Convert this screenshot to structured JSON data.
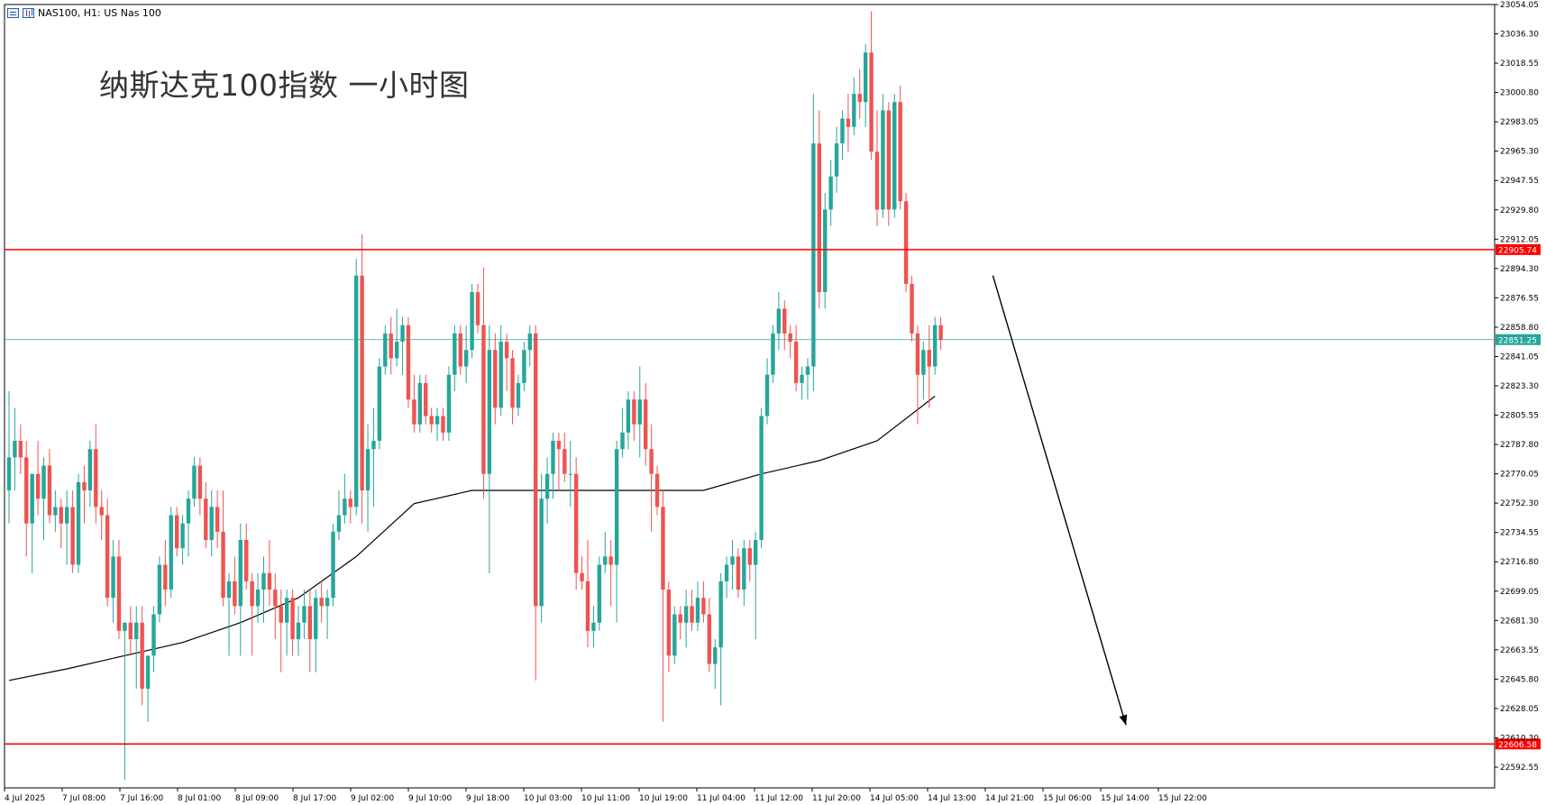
{
  "header": {
    "symbol_text": "NAS100, H1:  US Nas 100",
    "icons": [
      "grid-icon",
      "chart-bars-icon"
    ]
  },
  "annotation_title": "纳斯达克100指数 一小时图",
  "colors": {
    "up": "#26a69a",
    "down": "#ef5350",
    "ma": "#000000",
    "hline": "#ff0000",
    "price_line": "#26a69a",
    "grid": "#000000",
    "arrow": "#000000"
  },
  "chart_data": {
    "type": "candlestick",
    "symbol": "NAS100",
    "timeframe": "H1",
    "price_axis": {
      "min": 22580,
      "max": 23054.05,
      "tick_labels": [
        "23054.05",
        "23036.30",
        "23018.55",
        "23000.80",
        "22983.05",
        "22965.30",
        "22947.55",
        "22929.80",
        "22912.05",
        "22894.30",
        "22876.55",
        "22858.80",
        "22841.05",
        "22823.30",
        "22805.55",
        "22787.80",
        "22770.05",
        "22752.30",
        "22734.55",
        "22716.80",
        "22699.05",
        "22681.30",
        "22663.55",
        "22645.80",
        "22628.05",
        "22610.30",
        "22592.55"
      ]
    },
    "time_axis": {
      "labels": [
        "4 Jul 2025",
        "7 Jul 08:00",
        "7 Jul 16:00",
        "8 Jul 01:00",
        "8 Jul 09:00",
        "8 Jul 17:00",
        "9 Jul 02:00",
        "9 Jul 10:00",
        "9 Jul 18:00",
        "10 Jul 03:00",
        "10 Jul 11:00",
        "10 Jul 19:00",
        "11 Jul 04:00",
        "11 Jul 12:00",
        "11 Jul 20:00",
        "14 Jul 05:00",
        "14 Jul 13:00",
        "14 Jul 21:00",
        "15 Jul 06:00",
        "15 Jul 14:00",
        "15 Jul 22:00"
      ]
    },
    "horizontal_lines": [
      {
        "price": 22905.74,
        "label": "22905.74",
        "color": "#ff0000"
      },
      {
        "price": 22606.58,
        "label": "22606.58",
        "color": "#ff0000"
      },
      {
        "price": 22851.25,
        "label": "22851.25",
        "color": "#26a69a",
        "kind": "current_price"
      }
    ],
    "candles": [
      {
        "o": 22760,
        "h": 22820,
        "l": 22740,
        "c": 22780
      },
      {
        "o": 22780,
        "h": 22810,
        "l": 22760,
        "c": 22790
      },
      {
        "o": 22790,
        "h": 22800,
        "l": 22770,
        "c": 22780
      },
      {
        "o": 22780,
        "h": 22790,
        "l": 22720,
        "c": 22740
      },
      {
        "o": 22740,
        "h": 22770,
        "l": 22710,
        "c": 22770
      },
      {
        "o": 22770,
        "h": 22790,
        "l": 22745,
        "c": 22755
      },
      {
        "o": 22755,
        "h": 22780,
        "l": 22730,
        "c": 22775
      },
      {
        "o": 22775,
        "h": 22785,
        "l": 22740,
        "c": 22745
      },
      {
        "o": 22745,
        "h": 22760,
        "l": 22735,
        "c": 22750
      },
      {
        "o": 22750,
        "h": 22755,
        "l": 22725,
        "c": 22740
      },
      {
        "o": 22740,
        "h": 22760,
        "l": 22715,
        "c": 22750
      },
      {
        "o": 22750,
        "h": 22760,
        "l": 22710,
        "c": 22715
      },
      {
        "o": 22715,
        "h": 22770,
        "l": 22710,
        "c": 22765
      },
      {
        "o": 22765,
        "h": 22775,
        "l": 22740,
        "c": 22760
      },
      {
        "o": 22760,
        "h": 22790,
        "l": 22750,
        "c": 22785
      },
      {
        "o": 22785,
        "h": 22800,
        "l": 22740,
        "c": 22750
      },
      {
        "o": 22750,
        "h": 22760,
        "l": 22730,
        "c": 22745
      },
      {
        "o": 22745,
        "h": 22755,
        "l": 22690,
        "c": 22695
      },
      {
        "o": 22695,
        "h": 22730,
        "l": 22680,
        "c": 22720
      },
      {
        "o": 22720,
        "h": 22730,
        "l": 22670,
        "c": 22675
      },
      {
        "o": 22675,
        "h": 22680,
        "l": 22585,
        "c": 22680
      },
      {
        "o": 22680,
        "h": 22690,
        "l": 22660,
        "c": 22670
      },
      {
        "o": 22670,
        "h": 22690,
        "l": 22640,
        "c": 22680
      },
      {
        "o": 22680,
        "h": 22690,
        "l": 22630,
        "c": 22640
      },
      {
        "o": 22640,
        "h": 22660,
        "l": 22620,
        "c": 22660
      },
      {
        "o": 22660,
        "h": 22690,
        "l": 22650,
        "c": 22685
      },
      {
        "o": 22685,
        "h": 22720,
        "l": 22680,
        "c": 22715
      },
      {
        "o": 22715,
        "h": 22730,
        "l": 22690,
        "c": 22700
      },
      {
        "o": 22700,
        "h": 22750,
        "l": 22695,
        "c": 22745
      },
      {
        "o": 22745,
        "h": 22750,
        "l": 22720,
        "c": 22725
      },
      {
        "o": 22725,
        "h": 22745,
        "l": 22715,
        "c": 22740
      },
      {
        "o": 22740,
        "h": 22760,
        "l": 22720,
        "c": 22755
      },
      {
        "o": 22755,
        "h": 22780,
        "l": 22750,
        "c": 22775
      },
      {
        "o": 22775,
        "h": 22780,
        "l": 22745,
        "c": 22755
      },
      {
        "o": 22755,
        "h": 22765,
        "l": 22725,
        "c": 22730
      },
      {
        "o": 22730,
        "h": 22760,
        "l": 22720,
        "c": 22750
      },
      {
        "o": 22750,
        "h": 22760,
        "l": 22725,
        "c": 22735
      },
      {
        "o": 22735,
        "h": 22760,
        "l": 22690,
        "c": 22695
      },
      {
        "o": 22695,
        "h": 22710,
        "l": 22660,
        "c": 22705
      },
      {
        "o": 22705,
        "h": 22720,
        "l": 22685,
        "c": 22690
      },
      {
        "o": 22690,
        "h": 22740,
        "l": 22660,
        "c": 22730
      },
      {
        "o": 22730,
        "h": 22740,
        "l": 22700,
        "c": 22705
      },
      {
        "o": 22705,
        "h": 22710,
        "l": 22660,
        "c": 22690
      },
      {
        "o": 22690,
        "h": 22710,
        "l": 22680,
        "c": 22700
      },
      {
        "o": 22700,
        "h": 22720,
        "l": 22680,
        "c": 22710
      },
      {
        "o": 22710,
        "h": 22730,
        "l": 22690,
        "c": 22700
      },
      {
        "o": 22700,
        "h": 22710,
        "l": 22670,
        "c": 22690
      },
      {
        "o": 22690,
        "h": 22700,
        "l": 22650,
        "c": 22680
      },
      {
        "o": 22680,
        "h": 22700,
        "l": 22660,
        "c": 22695
      },
      {
        "o": 22695,
        "h": 22700,
        "l": 22660,
        "c": 22670
      },
      {
        "o": 22670,
        "h": 22690,
        "l": 22660,
        "c": 22680
      },
      {
        "o": 22680,
        "h": 22700,
        "l": 22670,
        "c": 22690
      },
      {
        "o": 22690,
        "h": 22700,
        "l": 22650,
        "c": 22670
      },
      {
        "o": 22670,
        "h": 22700,
        "l": 22650,
        "c": 22695
      },
      {
        "o": 22695,
        "h": 22705,
        "l": 22680,
        "c": 22690
      },
      {
        "o": 22690,
        "h": 22700,
        "l": 22670,
        "c": 22695
      },
      {
        "o": 22695,
        "h": 22740,
        "l": 22690,
        "c": 22735
      },
      {
        "o": 22735,
        "h": 22760,
        "l": 22730,
        "c": 22745
      },
      {
        "o": 22745,
        "h": 22770,
        "l": 22740,
        "c": 22755
      },
      {
        "o": 22755,
        "h": 22760,
        "l": 22740,
        "c": 22750
      },
      {
        "o": 22750,
        "h": 22900,
        "l": 22745,
        "c": 22890
      },
      {
        "o": 22890,
        "h": 22915,
        "l": 22740,
        "c": 22760
      },
      {
        "o": 22760,
        "h": 22800,
        "l": 22735,
        "c": 22785
      },
      {
        "o": 22785,
        "h": 22810,
        "l": 22750,
        "c": 22790
      },
      {
        "o": 22790,
        "h": 22840,
        "l": 22785,
        "c": 22835
      },
      {
        "o": 22835,
        "h": 22860,
        "l": 22830,
        "c": 22855
      },
      {
        "o": 22855,
        "h": 22865,
        "l": 22830,
        "c": 22840
      },
      {
        "o": 22840,
        "h": 22870,
        "l": 22835,
        "c": 22850
      },
      {
        "o": 22850,
        "h": 22865,
        "l": 22830,
        "c": 22860
      },
      {
        "o": 22860,
        "h": 22865,
        "l": 22810,
        "c": 22815
      },
      {
        "o": 22815,
        "h": 22830,
        "l": 22795,
        "c": 22800
      },
      {
        "o": 22800,
        "h": 22830,
        "l": 22795,
        "c": 22825
      },
      {
        "o": 22825,
        "h": 22830,
        "l": 22800,
        "c": 22805
      },
      {
        "o": 22805,
        "h": 22810,
        "l": 22795,
        "c": 22800
      },
      {
        "o": 22800,
        "h": 22810,
        "l": 22790,
        "c": 22805
      },
      {
        "o": 22805,
        "h": 22810,
        "l": 22790,
        "c": 22795
      },
      {
        "o": 22795,
        "h": 22835,
        "l": 22790,
        "c": 22830
      },
      {
        "o": 22830,
        "h": 22860,
        "l": 22820,
        "c": 22855
      },
      {
        "o": 22855,
        "h": 22860,
        "l": 22830,
        "c": 22835
      },
      {
        "o": 22835,
        "h": 22860,
        "l": 22825,
        "c": 22845
      },
      {
        "o": 22845,
        "h": 22885,
        "l": 22840,
        "c": 22880
      },
      {
        "o": 22880,
        "h": 22885,
        "l": 22855,
        "c": 22860
      },
      {
        "o": 22860,
        "h": 22895,
        "l": 22755,
        "c": 22770
      },
      {
        "o": 22770,
        "h": 22860,
        "l": 22710,
        "c": 22845
      },
      {
        "o": 22845,
        "h": 22855,
        "l": 22800,
        "c": 22810
      },
      {
        "o": 22810,
        "h": 22860,
        "l": 22805,
        "c": 22850
      },
      {
        "o": 22850,
        "h": 22855,
        "l": 22820,
        "c": 22840
      },
      {
        "o": 22840,
        "h": 22845,
        "l": 22800,
        "c": 22810
      },
      {
        "o": 22810,
        "h": 22830,
        "l": 22805,
        "c": 22825
      },
      {
        "o": 22825,
        "h": 22850,
        "l": 22820,
        "c": 22845
      },
      {
        "o": 22845,
        "h": 22860,
        "l": 22835,
        "c": 22855
      },
      {
        "o": 22855,
        "h": 22860,
        "l": 22645,
        "c": 22690
      },
      {
        "o": 22690,
        "h": 22770,
        "l": 22680,
        "c": 22755
      },
      {
        "o": 22755,
        "h": 22780,
        "l": 22740,
        "c": 22770
      },
      {
        "o": 22770,
        "h": 22795,
        "l": 22755,
        "c": 22790
      },
      {
        "o": 22790,
        "h": 22795,
        "l": 22760,
        "c": 22785
      },
      {
        "o": 22785,
        "h": 22795,
        "l": 22765,
        "c": 22770
      },
      {
        "o": 22770,
        "h": 22790,
        "l": 22750,
        "c": 22770
      },
      {
        "o": 22770,
        "h": 22780,
        "l": 22700,
        "c": 22710
      },
      {
        "o": 22710,
        "h": 22720,
        "l": 22700,
        "c": 22705
      },
      {
        "o": 22705,
        "h": 22730,
        "l": 22665,
        "c": 22675
      },
      {
        "o": 22675,
        "h": 22690,
        "l": 22665,
        "c": 22680
      },
      {
        "o": 22680,
        "h": 22720,
        "l": 22675,
        "c": 22715
      },
      {
        "o": 22715,
        "h": 22735,
        "l": 22710,
        "c": 22720
      },
      {
        "o": 22720,
        "h": 22730,
        "l": 22690,
        "c": 22715
      },
      {
        "o": 22715,
        "h": 22790,
        "l": 22680,
        "c": 22785
      },
      {
        "o": 22785,
        "h": 22810,
        "l": 22780,
        "c": 22795
      },
      {
        "o": 22795,
        "h": 22820,
        "l": 22785,
        "c": 22815
      },
      {
        "o": 22815,
        "h": 22820,
        "l": 22790,
        "c": 22800
      },
      {
        "o": 22800,
        "h": 22835,
        "l": 22780,
        "c": 22815
      },
      {
        "o": 22815,
        "h": 22825,
        "l": 22775,
        "c": 22785
      },
      {
        "o": 22785,
        "h": 22800,
        "l": 22735,
        "c": 22770
      },
      {
        "o": 22770,
        "h": 22775,
        "l": 22745,
        "c": 22750
      },
      {
        "o": 22750,
        "h": 22760,
        "l": 22620,
        "c": 22700
      },
      {
        "o": 22700,
        "h": 22705,
        "l": 22650,
        "c": 22660
      },
      {
        "o": 22660,
        "h": 22690,
        "l": 22655,
        "c": 22685
      },
      {
        "o": 22685,
        "h": 22690,
        "l": 22670,
        "c": 22680
      },
      {
        "o": 22680,
        "h": 22700,
        "l": 22665,
        "c": 22690
      },
      {
        "o": 22690,
        "h": 22700,
        "l": 22675,
        "c": 22680
      },
      {
        "o": 22680,
        "h": 22705,
        "l": 22675,
        "c": 22695
      },
      {
        "o": 22695,
        "h": 22705,
        "l": 22680,
        "c": 22685
      },
      {
        "o": 22685,
        "h": 22695,
        "l": 22650,
        "c": 22655
      },
      {
        "o": 22655,
        "h": 22670,
        "l": 22640,
        "c": 22665
      },
      {
        "o": 22665,
        "h": 22710,
        "l": 22630,
        "c": 22705
      },
      {
        "o": 22705,
        "h": 22720,
        "l": 22695,
        "c": 22715
      },
      {
        "o": 22715,
        "h": 22730,
        "l": 22700,
        "c": 22720
      },
      {
        "o": 22720,
        "h": 22725,
        "l": 22695,
        "c": 22700
      },
      {
        "o": 22700,
        "h": 22730,
        "l": 22690,
        "c": 22725
      },
      {
        "o": 22725,
        "h": 22730,
        "l": 22705,
        "c": 22715
      },
      {
        "o": 22715,
        "h": 22735,
        "l": 22670,
        "c": 22730
      },
      {
        "o": 22730,
        "h": 22810,
        "l": 22725,
        "c": 22805
      },
      {
        "o": 22805,
        "h": 22840,
        "l": 22800,
        "c": 22830
      },
      {
        "o": 22830,
        "h": 22860,
        "l": 22825,
        "c": 22855
      },
      {
        "o": 22855,
        "h": 22880,
        "l": 22845,
        "c": 22870
      },
      {
        "o": 22870,
        "h": 22875,
        "l": 22845,
        "c": 22855
      },
      {
        "o": 22855,
        "h": 22860,
        "l": 22840,
        "c": 22850
      },
      {
        "o": 22850,
        "h": 22860,
        "l": 22820,
        "c": 22825
      },
      {
        "o": 22825,
        "h": 22835,
        "l": 22815,
        "c": 22830
      },
      {
        "o": 22830,
        "h": 22840,
        "l": 22815,
        "c": 22835
      },
      {
        "o": 22835,
        "h": 23000,
        "l": 22820,
        "c": 22970
      },
      {
        "o": 22970,
        "h": 22990,
        "l": 22870,
        "c": 22880
      },
      {
        "o": 22880,
        "h": 22940,
        "l": 22870,
        "c": 22930
      },
      {
        "o": 22930,
        "h": 22960,
        "l": 22920,
        "c": 22950
      },
      {
        "o": 22950,
        "h": 22980,
        "l": 22940,
        "c": 22970
      },
      {
        "o": 22970,
        "h": 22990,
        "l": 22960,
        "c": 22985
      },
      {
        "o": 22985,
        "h": 23000,
        "l": 22965,
        "c": 22980
      },
      {
        "o": 22980,
        "h": 23010,
        "l": 22975,
        "c": 23000
      },
      {
        "o": 23000,
        "h": 23015,
        "l": 22985,
        "c": 22995
      },
      {
        "o": 22995,
        "h": 23030,
        "l": 22980,
        "c": 23025
      },
      {
        "o": 23025,
        "h": 23050,
        "l": 22960,
        "c": 22965
      },
      {
        "o": 22965,
        "h": 22990,
        "l": 22920,
        "c": 22930
      },
      {
        "o": 22930,
        "h": 23000,
        "l": 22925,
        "c": 22990
      },
      {
        "o": 22990,
        "h": 22995,
        "l": 22920,
        "c": 22930
      },
      {
        "o": 22930,
        "h": 23000,
        "l": 22925,
        "c": 22995
      },
      {
        "o": 22995,
        "h": 23005,
        "l": 22930,
        "c": 22935
      },
      {
        "o": 22935,
        "h": 22940,
        "l": 22880,
        "c": 22885
      },
      {
        "o": 22885,
        "h": 22890,
        "l": 22850,
        "c": 22855
      },
      {
        "o": 22855,
        "h": 22860,
        "l": 22800,
        "c": 22830
      },
      {
        "o": 22830,
        "h": 22850,
        "l": 22815,
        "c": 22845
      },
      {
        "o": 22845,
        "h": 22860,
        "l": 22810,
        "c": 22835
      },
      {
        "o": 22835,
        "h": 22865,
        "l": 22830,
        "c": 22860
      },
      {
        "o": 22860,
        "h": 22865,
        "l": 22845,
        "c": 22851
      }
    ],
    "moving_average": {
      "points": [
        [
          0,
          22645
        ],
        [
          10,
          22652
        ],
        [
          20,
          22660
        ],
        [
          30,
          22668
        ],
        [
          40,
          22680
        ],
        [
          50,
          22695
        ],
        [
          60,
          22720
        ],
        [
          70,
          22752
        ],
        [
          80,
          22760
        ],
        [
          90,
          22760
        ],
        [
          100,
          22760
        ],
        [
          110,
          22760
        ],
        [
          120,
          22760
        ],
        [
          130,
          22770
        ],
        [
          140,
          22778
        ],
        [
          150,
          22790
        ],
        [
          160,
          22817
        ]
      ]
    },
    "arrow": {
      "from": {
        "index": 170,
        "price": 22890
      },
      "to": {
        "index": 193,
        "price": 22618
      }
    }
  }
}
